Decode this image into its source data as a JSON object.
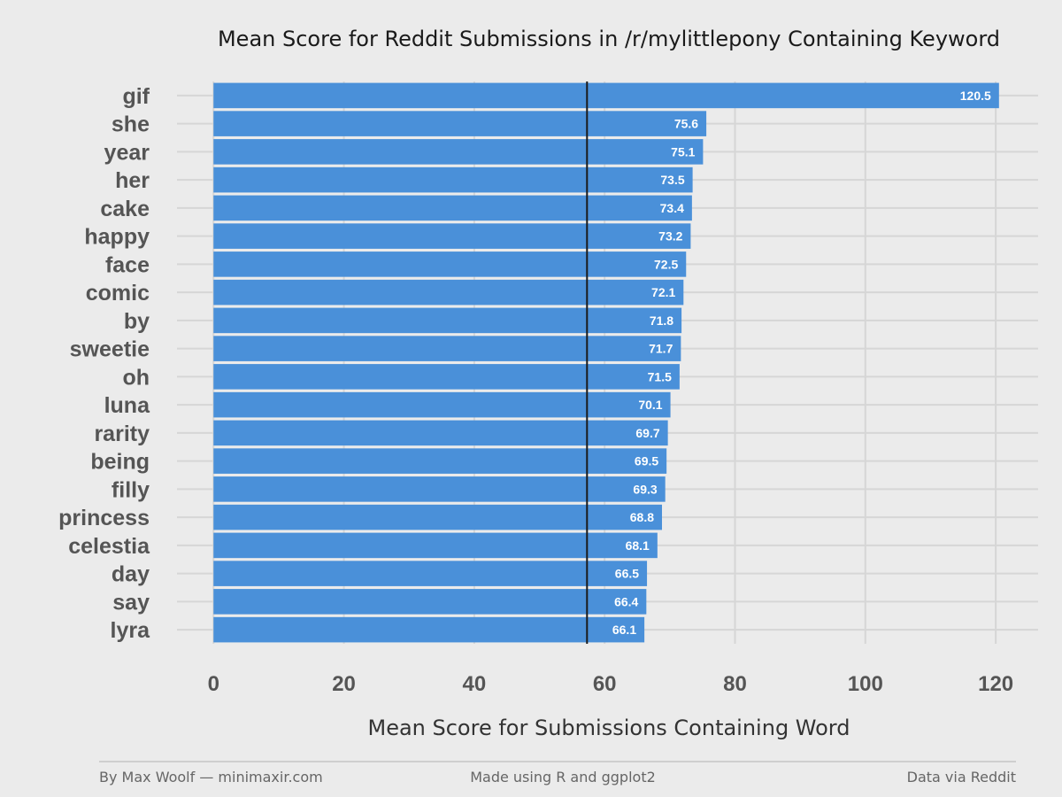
{
  "chart_data": {
    "type": "bar",
    "orientation": "horizontal",
    "title": "Mean Score for Reddit Submissions in /r/mylittlepony Containing Keyword",
    "xlabel": "Mean Score for Submissions Containing Word",
    "ylabel": "",
    "categories": [
      "gif",
      "she",
      "year",
      "her",
      "cake",
      "happy",
      "face",
      "comic",
      "by",
      "sweetie",
      "oh",
      "luna",
      "rarity",
      "being",
      "filly",
      "princess",
      "celestia",
      "day",
      "say",
      "lyra"
    ],
    "values": [
      120.5,
      75.6,
      75.1,
      73.5,
      73.4,
      73.2,
      72.5,
      72.1,
      71.8,
      71.7,
      71.5,
      70.1,
      69.7,
      69.5,
      69.3,
      68.8,
      68.1,
      66.5,
      66.4,
      66.1
    ],
    "value_labels": [
      "120.5",
      "75.6",
      "75.1",
      "73.5",
      "73.4",
      "73.2",
      "72.5",
      "72.1",
      "71.8",
      "71.7",
      "71.5",
      "70.1",
      "69.7",
      "69.5",
      "69.3",
      "68.8",
      "68.1",
      "66.5",
      "66.4",
      "66.1"
    ],
    "x_ticks": [
      0,
      20,
      40,
      60,
      80,
      100,
      120
    ],
    "x_tick_labels": [
      "0",
      "20",
      "40",
      "60",
      "80",
      "100",
      "120"
    ],
    "xlim": [
      -5.6,
      126.5
    ],
    "reference_line": 57.3,
    "grid": true,
    "legend": "none",
    "colors": {
      "bar": "#4a90d9",
      "background": "#ebebeb",
      "grid": "#d6d6d6",
      "reference_line": "#1a1a1a"
    }
  },
  "footer": {
    "left": "By Max Woolf — minimaxir.com",
    "center": "Made using R and ggplot2",
    "right": "Data via Reddit"
  }
}
